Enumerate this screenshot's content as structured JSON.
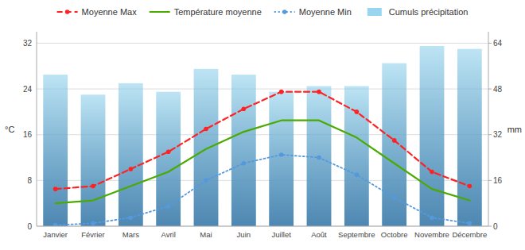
{
  "chart_data": {
    "type": "line",
    "categories": [
      "Janvier",
      "Février",
      "Mars",
      "Avril",
      "Mai",
      "Juin",
      "Juillet",
      "Août",
      "Septembre",
      "Octobre",
      "Novembre",
      "Décembre"
    ],
    "series": [
      {
        "name": "Moyenne Max",
        "type": "line",
        "color": "#ff2222",
        "line_style": "dashed",
        "marker": "circle",
        "values": [
          6.5,
          7.0,
          10.0,
          13.0,
          17.0,
          20.5,
          23.5,
          23.5,
          20.0,
          15.0,
          9.5,
          7.0
        ]
      },
      {
        "name": "Température moyenne",
        "type": "line",
        "color": "#4aaa00",
        "line_style": "solid",
        "values": [
          4.0,
          4.5,
          7.0,
          9.5,
          13.5,
          16.5,
          18.5,
          18.5,
          15.5,
          11.0,
          6.5,
          4.5
        ]
      },
      {
        "name": "Moyenne Min",
        "type": "line",
        "color": "#5599dd",
        "line_style": "dotted",
        "marker": "circle",
        "values": [
          0.2,
          0.5,
          1.5,
          3.5,
          8.0,
          11.0,
          12.5,
          12.0,
          9.0,
          5.0,
          1.5,
          0.5
        ]
      },
      {
        "name": "Cumuls précipitation",
        "type": "bar",
        "axis": "y2",
        "color": "#87ceeb",
        "values": [
          53,
          46,
          50,
          47,
          55,
          53,
          47,
          49,
          49,
          57,
          63,
          62
        ]
      }
    ],
    "ylabel": "°C",
    "y2label": "mm",
    "ylim": [
      0,
      34
    ],
    "yticks": [
      0,
      8,
      16,
      24,
      32
    ],
    "y2lim": [
      0,
      68
    ],
    "y2ticks": [
      0,
      16,
      32,
      48,
      64
    ],
    "grid": true,
    "legend": "top"
  }
}
